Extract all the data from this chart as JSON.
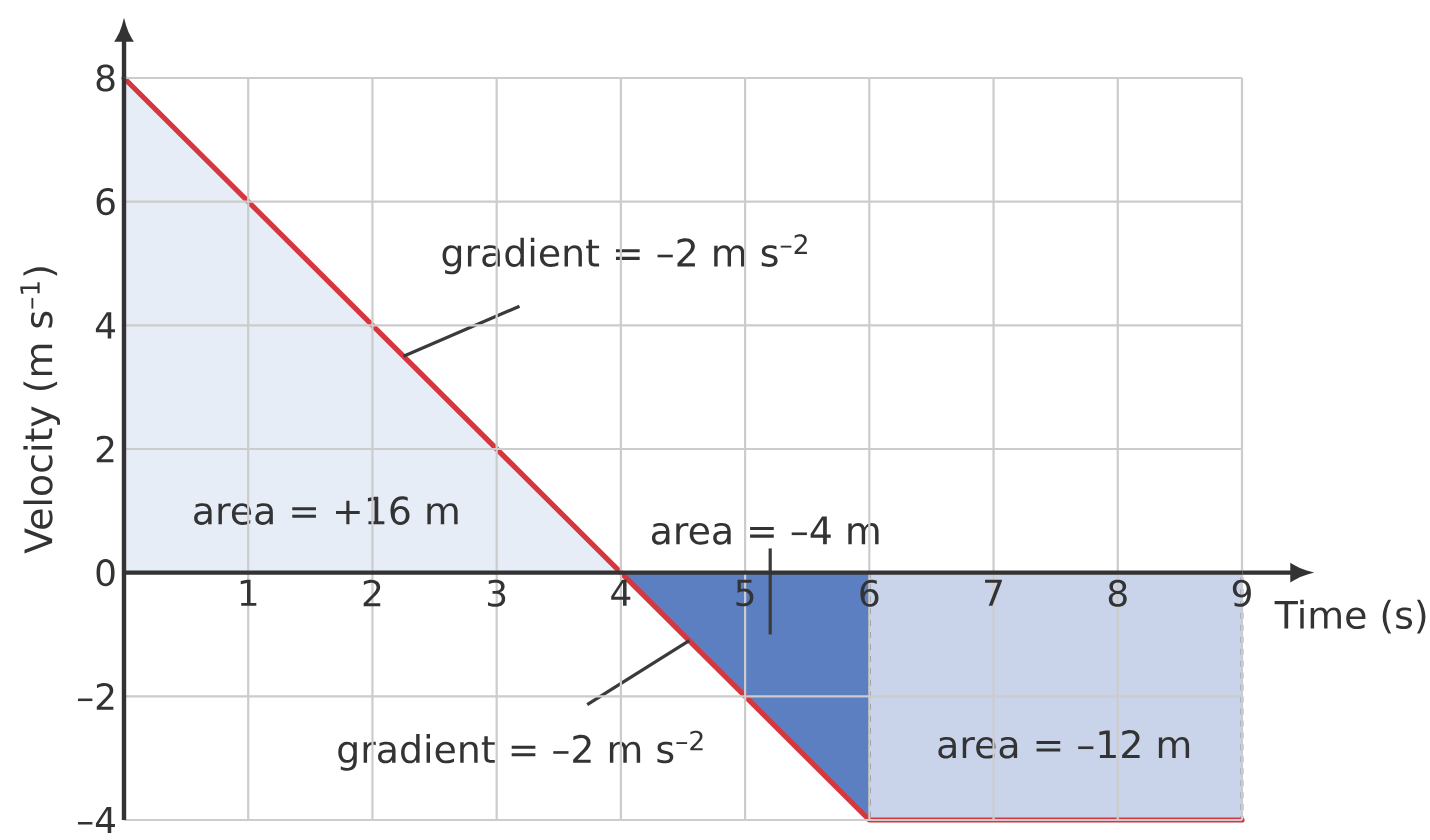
{
  "chart_data": {
    "type": "line",
    "xlabel": "Time (s)",
    "ylabel": "Velocity (m s$^{–1}$)",
    "xlim": [
      0,
      9
    ],
    "ylim": [
      -4,
      8
    ],
    "xticks": [
      1,
      2,
      3,
      4,
      5,
      6,
      7,
      8,
      9
    ],
    "yticks": [
      {
        "value": -4,
        "label": "–4"
      },
      {
        "value": -2,
        "label": "–2"
      },
      0,
      2,
      4,
      6,
      8
    ],
    "grid": true,
    "series": [
      {
        "type": "area",
        "x": [
          0,
          4
        ],
        "values": [
          8,
          0
        ],
        "color": "#e6edf7"
      },
      {
        "type": "area",
        "x": [
          4,
          6
        ],
        "values": [
          0,
          -4
        ],
        "color": "#5c7fc1"
      },
      {
        "type": "area",
        "x": [
          6,
          9
        ],
        "values": [
          -4,
          -4
        ],
        "color": "#c9d4eb",
        "line_style": "dashed"
      },
      {
        "x": [
          0,
          4,
          6,
          9
        ],
        "values": [
          8,
          0,
          -4,
          -4
        ],
        "color": "#d6373e"
      }
    ],
    "annotations": [
      {
        "text": "gradient = –2 m s$^{–2}$",
        "x": 2.25,
        "y": 3.5
      },
      "area = +16 m",
      "area = –4 m",
      {
        "text": "gradient = –2 m s$^{–2}$",
        "x": 4.55,
        "y": -1.1
      },
      "area = –12 m"
    ]
  }
}
